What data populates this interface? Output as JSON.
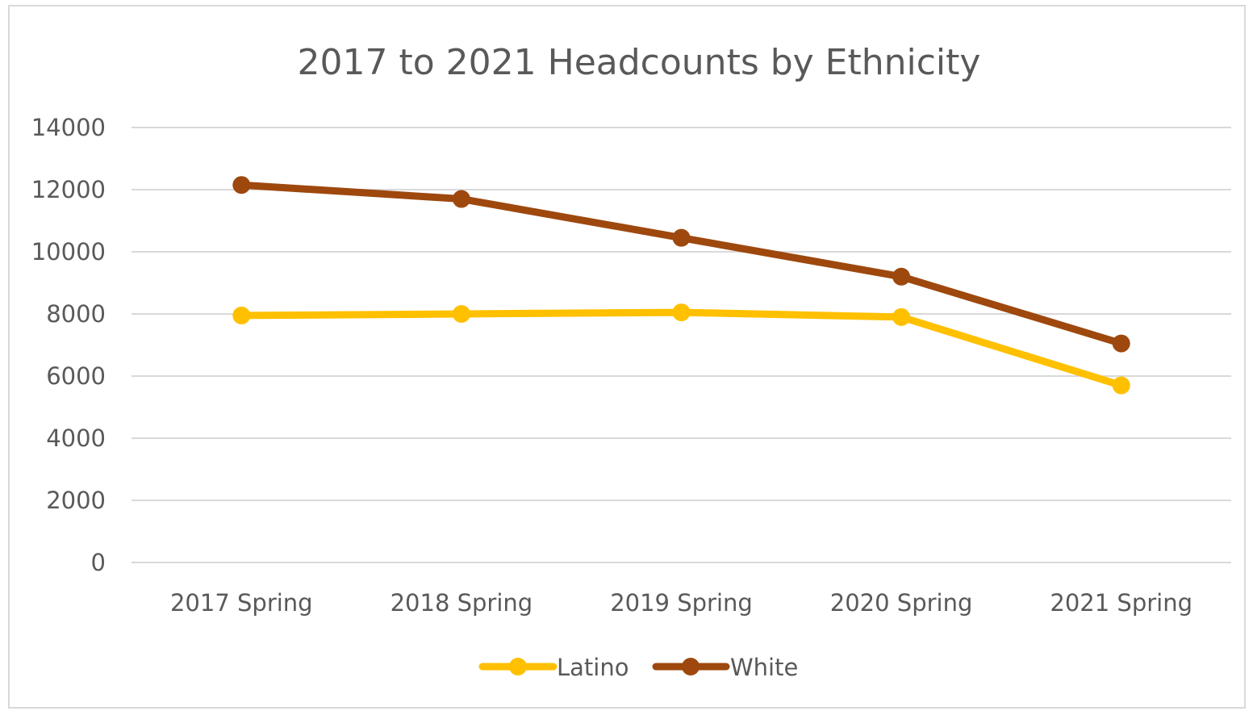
{
  "chart_data": {
    "type": "line",
    "title": "2017 to 2021 Headcounts by Ethnicity",
    "xlabel": "",
    "ylabel": "",
    "categories": [
      "2017 Spring",
      "2018 Spring",
      "2019 Spring",
      "2020 Spring",
      "2021 Spring"
    ],
    "y_ticks": [
      "14000",
      "12000",
      "10000",
      "8000",
      "6000",
      "4000",
      "2000",
      "0"
    ],
    "ylim": [
      0,
      14000
    ],
    "grid": true,
    "legend_position": "bottom",
    "series": [
      {
        "name": "Latino",
        "color": "#ffc000",
        "values": [
          7950,
          8000,
          8050,
          7900,
          5700
        ]
      },
      {
        "name": "White",
        "color": "#9e480e",
        "values": [
          12150,
          11700,
          10450,
          9200,
          7050
        ]
      }
    ]
  }
}
